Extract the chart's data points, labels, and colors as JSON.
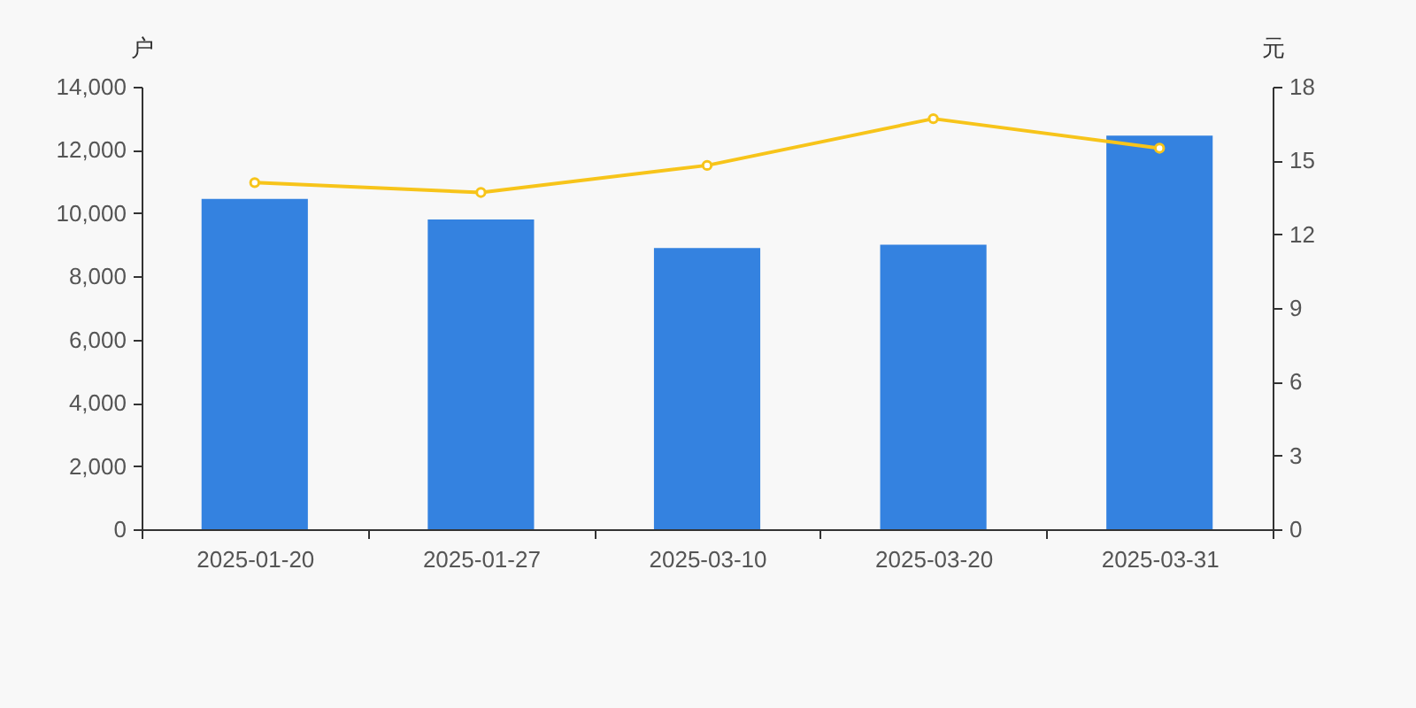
{
  "chart_data": {
    "type": "bar",
    "categories": [
      "2025-01-20",
      "2025-01-27",
      "2025-03-10",
      "2025-03-20",
      "2025-03-31"
    ],
    "series": [
      {
        "color": "#3482e0",
        "values": [
          10450,
          9800,
          8900,
          9000,
          12450
        ]
      },
      {
        "type": "line",
        "axis": "y2",
        "color": "#f7c41a",
        "marker": "circle",
        "values": [
          14.1,
          13.7,
          14.8,
          16.7,
          15.5
        ]
      }
    ],
    "ylabel": "户",
    "y2label": "元",
    "ylim": [
      0,
      14000
    ],
    "yticks": [
      0,
      {
        "value": 2000,
        "label": "2,000"
      },
      {
        "value": 4000,
        "label": "4,000"
      },
      {
        "value": 6000,
        "label": "6,000"
      },
      {
        "value": 8000,
        "label": "8,000"
      },
      {
        "value": 10000,
        "label": "10,000"
      },
      {
        "value": 12000,
        "label": "12,000"
      },
      {
        "value": 14000,
        "label": "14,000"
      }
    ],
    "y2lim": [
      0,
      18
    ],
    "y2ticks": [
      0,
      3,
      6,
      9,
      12,
      15,
      18
    ],
    "grid": false
  }
}
